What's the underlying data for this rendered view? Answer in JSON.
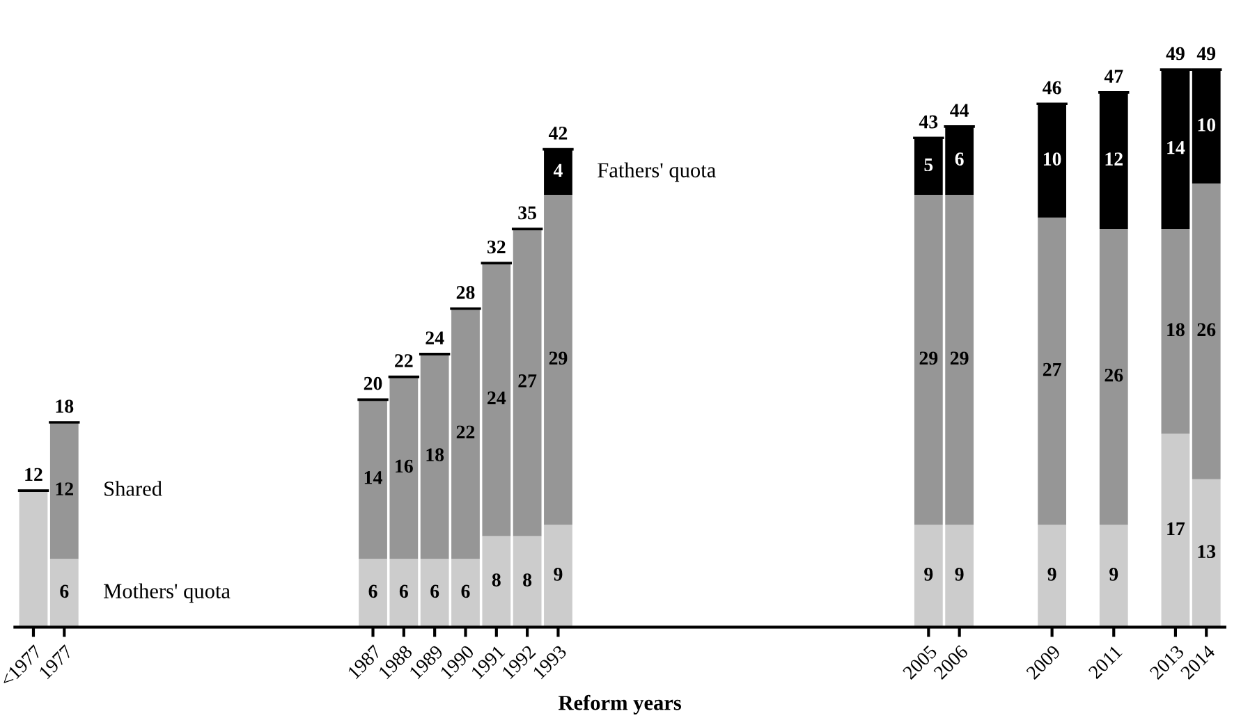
{
  "chart_data": {
    "type": "bar",
    "stacked": true,
    "xlabel": "Reform years",
    "x": [
      1976,
      1977,
      1987,
      1988,
      1989,
      1990,
      1991,
      1992,
      1993,
      2005,
      2006,
      2009,
      2011,
      2013,
      2014
    ],
    "xlim": [
      1975.4,
      2014.6
    ],
    "xticks": [
      {
        "value": 1976,
        "label": "<1977"
      },
      1977,
      1987,
      1988,
      1989,
      1990,
      1991,
      1992,
      1993,
      2005,
      2006,
      2009,
      2011,
      2013,
      2014
    ],
    "tick_labels": "x",
    "grid": false,
    "legend": false,
    "series": [
      {
        "name": "Mothers' quota",
        "color": "#cccccc",
        "values": [
          12,
          6,
          6,
          6,
          6,
          6,
          8,
          8,
          9,
          9,
          9,
          9,
          9,
          17,
          13
        ],
        "value_labels": [
          null,
          "6",
          "6",
          "6",
          "6",
          "6",
          "8",
          "8",
          "9",
          "9",
          "9",
          "9",
          "9",
          "17",
          "13"
        ]
      },
      {
        "name": "Shared",
        "color": "#969696",
        "values": [
          0,
          12,
          14,
          16,
          18,
          22,
          24,
          27,
          29,
          29,
          29,
          27,
          26,
          18,
          26
        ],
        "value_labels": [
          null,
          "12",
          "14",
          "16",
          "18",
          "22",
          "24",
          "27",
          "29",
          "29",
          "29",
          "27",
          "26",
          "18",
          "26"
        ]
      },
      {
        "name": "Fathers' quota",
        "color": "#000000",
        "values": [
          0,
          0,
          0,
          0,
          0,
          0,
          0,
          0,
          4,
          5,
          6,
          10,
          12,
          14,
          10
        ],
        "value_labels": [
          null,
          null,
          null,
          null,
          null,
          null,
          null,
          null,
          "4",
          "5",
          "6",
          "10",
          "12",
          "14",
          "10"
        ]
      }
    ],
    "totals": [
      "12",
      "18",
      "20",
      "22",
      "24",
      "28",
      "32",
      "35",
      "42",
      "43",
      "44",
      "46",
      "47",
      "49",
      "49"
    ]
  }
}
